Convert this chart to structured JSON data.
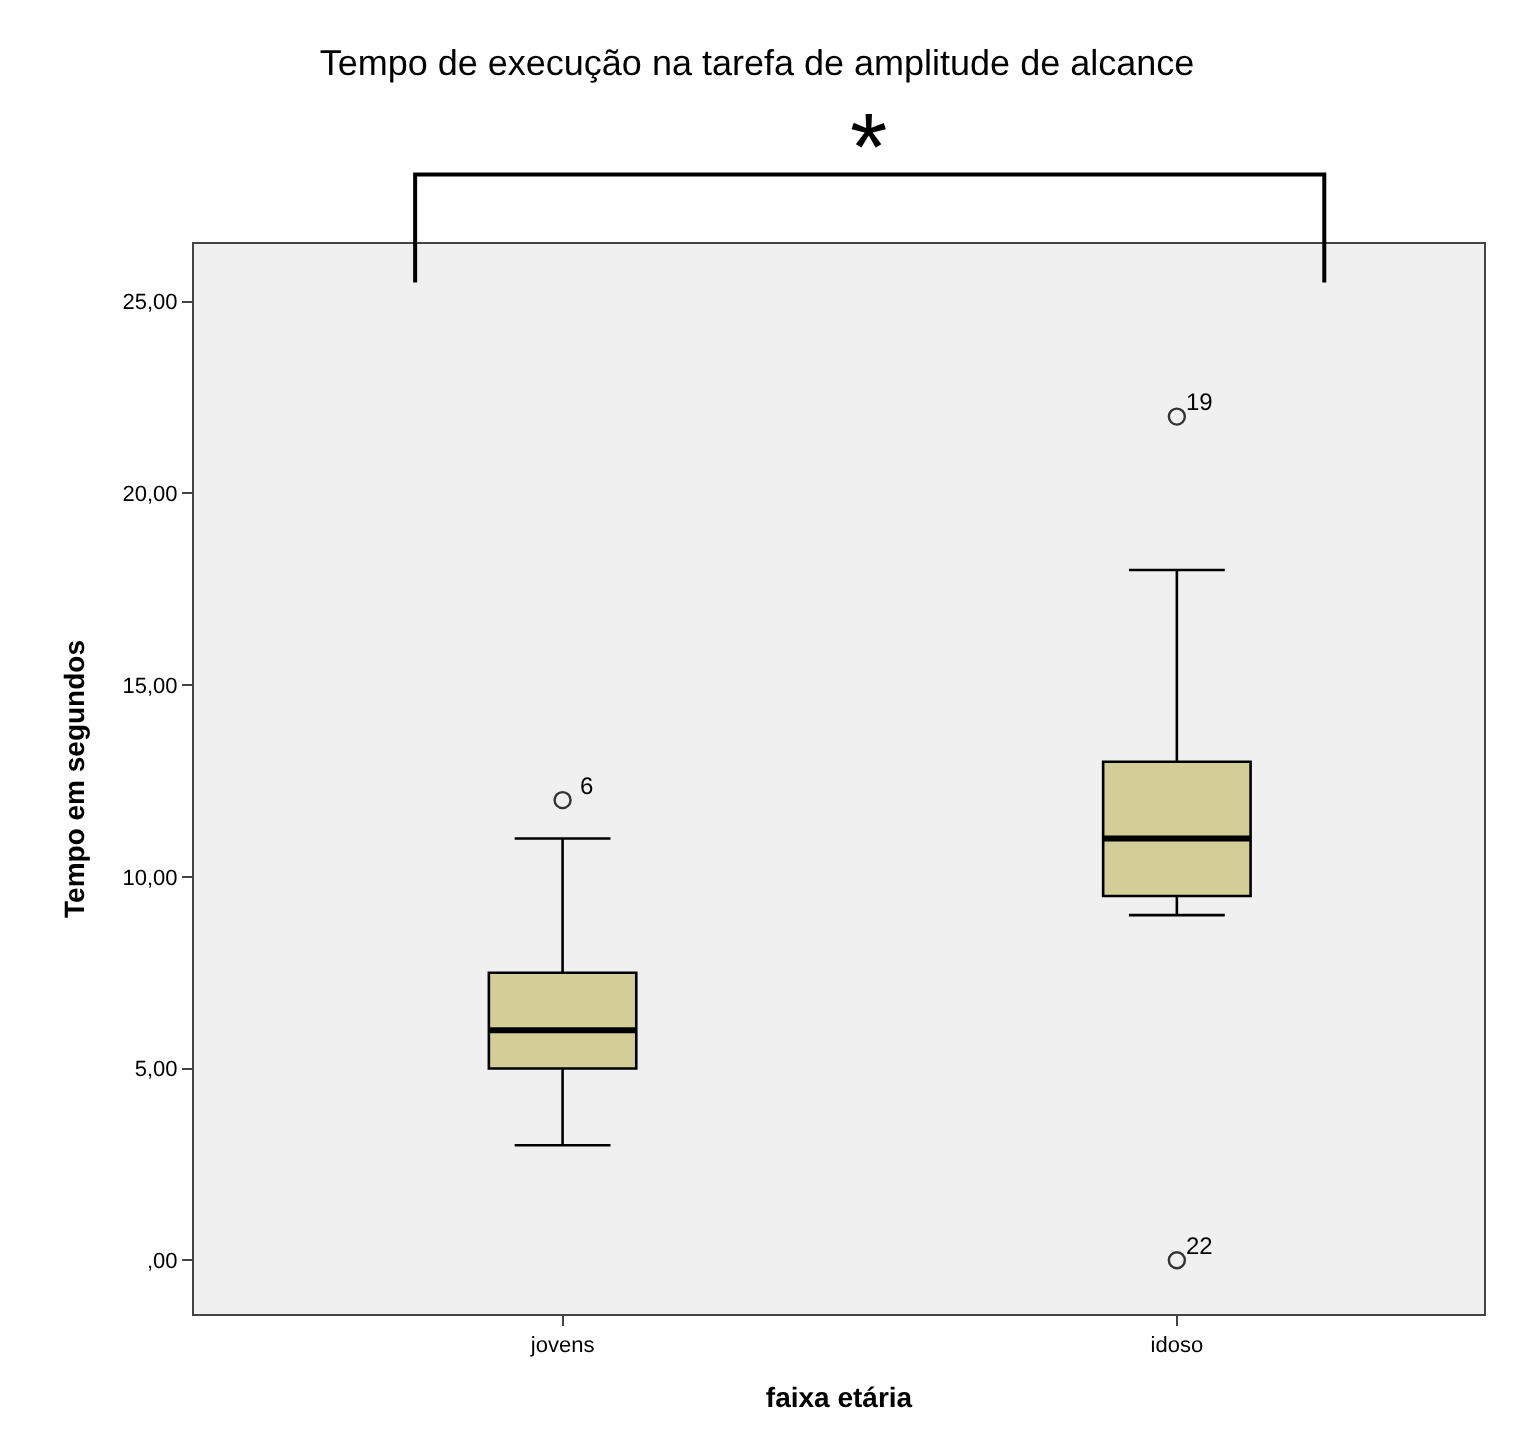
{
  "chart_data": {
    "type": "box",
    "title": "Tempo de execução na tarefa de amplitude de alcance",
    "xlabel": "faixa etária",
    "ylabel": "Tempo em segundos",
    "categories": [
      "jovens",
      "idoso"
    ],
    "boxes": [
      {
        "low": 3,
        "q1": 5,
        "median": 6,
        "q3": 7.5,
        "high": 11,
        "outliers": [
          12
        ]
      },
      {
        "low": 9,
        "q1": 9.5,
        "median": 11,
        "q3": 13,
        "high": 18,
        "outliers": [
          22,
          0
        ]
      }
    ],
    "color": "#d3ce97",
    "ylim": [
      -1.4,
      26.5
    ],
    "yticks": [
      {
        "value": 0,
        "label": ",00"
      },
      {
        "value": 5,
        "label": "5,00"
      },
      {
        "value": 10,
        "label": "10,00"
      },
      {
        "value": 15,
        "label": "15,00"
      },
      {
        "value": 20,
        "label": "20,00"
      },
      {
        "value": 25,
        "label": "25,00"
      }
    ],
    "grid": false,
    "marker": "circle",
    "annotations": [
      "*",
      "6",
      "19",
      "22"
    ]
  }
}
